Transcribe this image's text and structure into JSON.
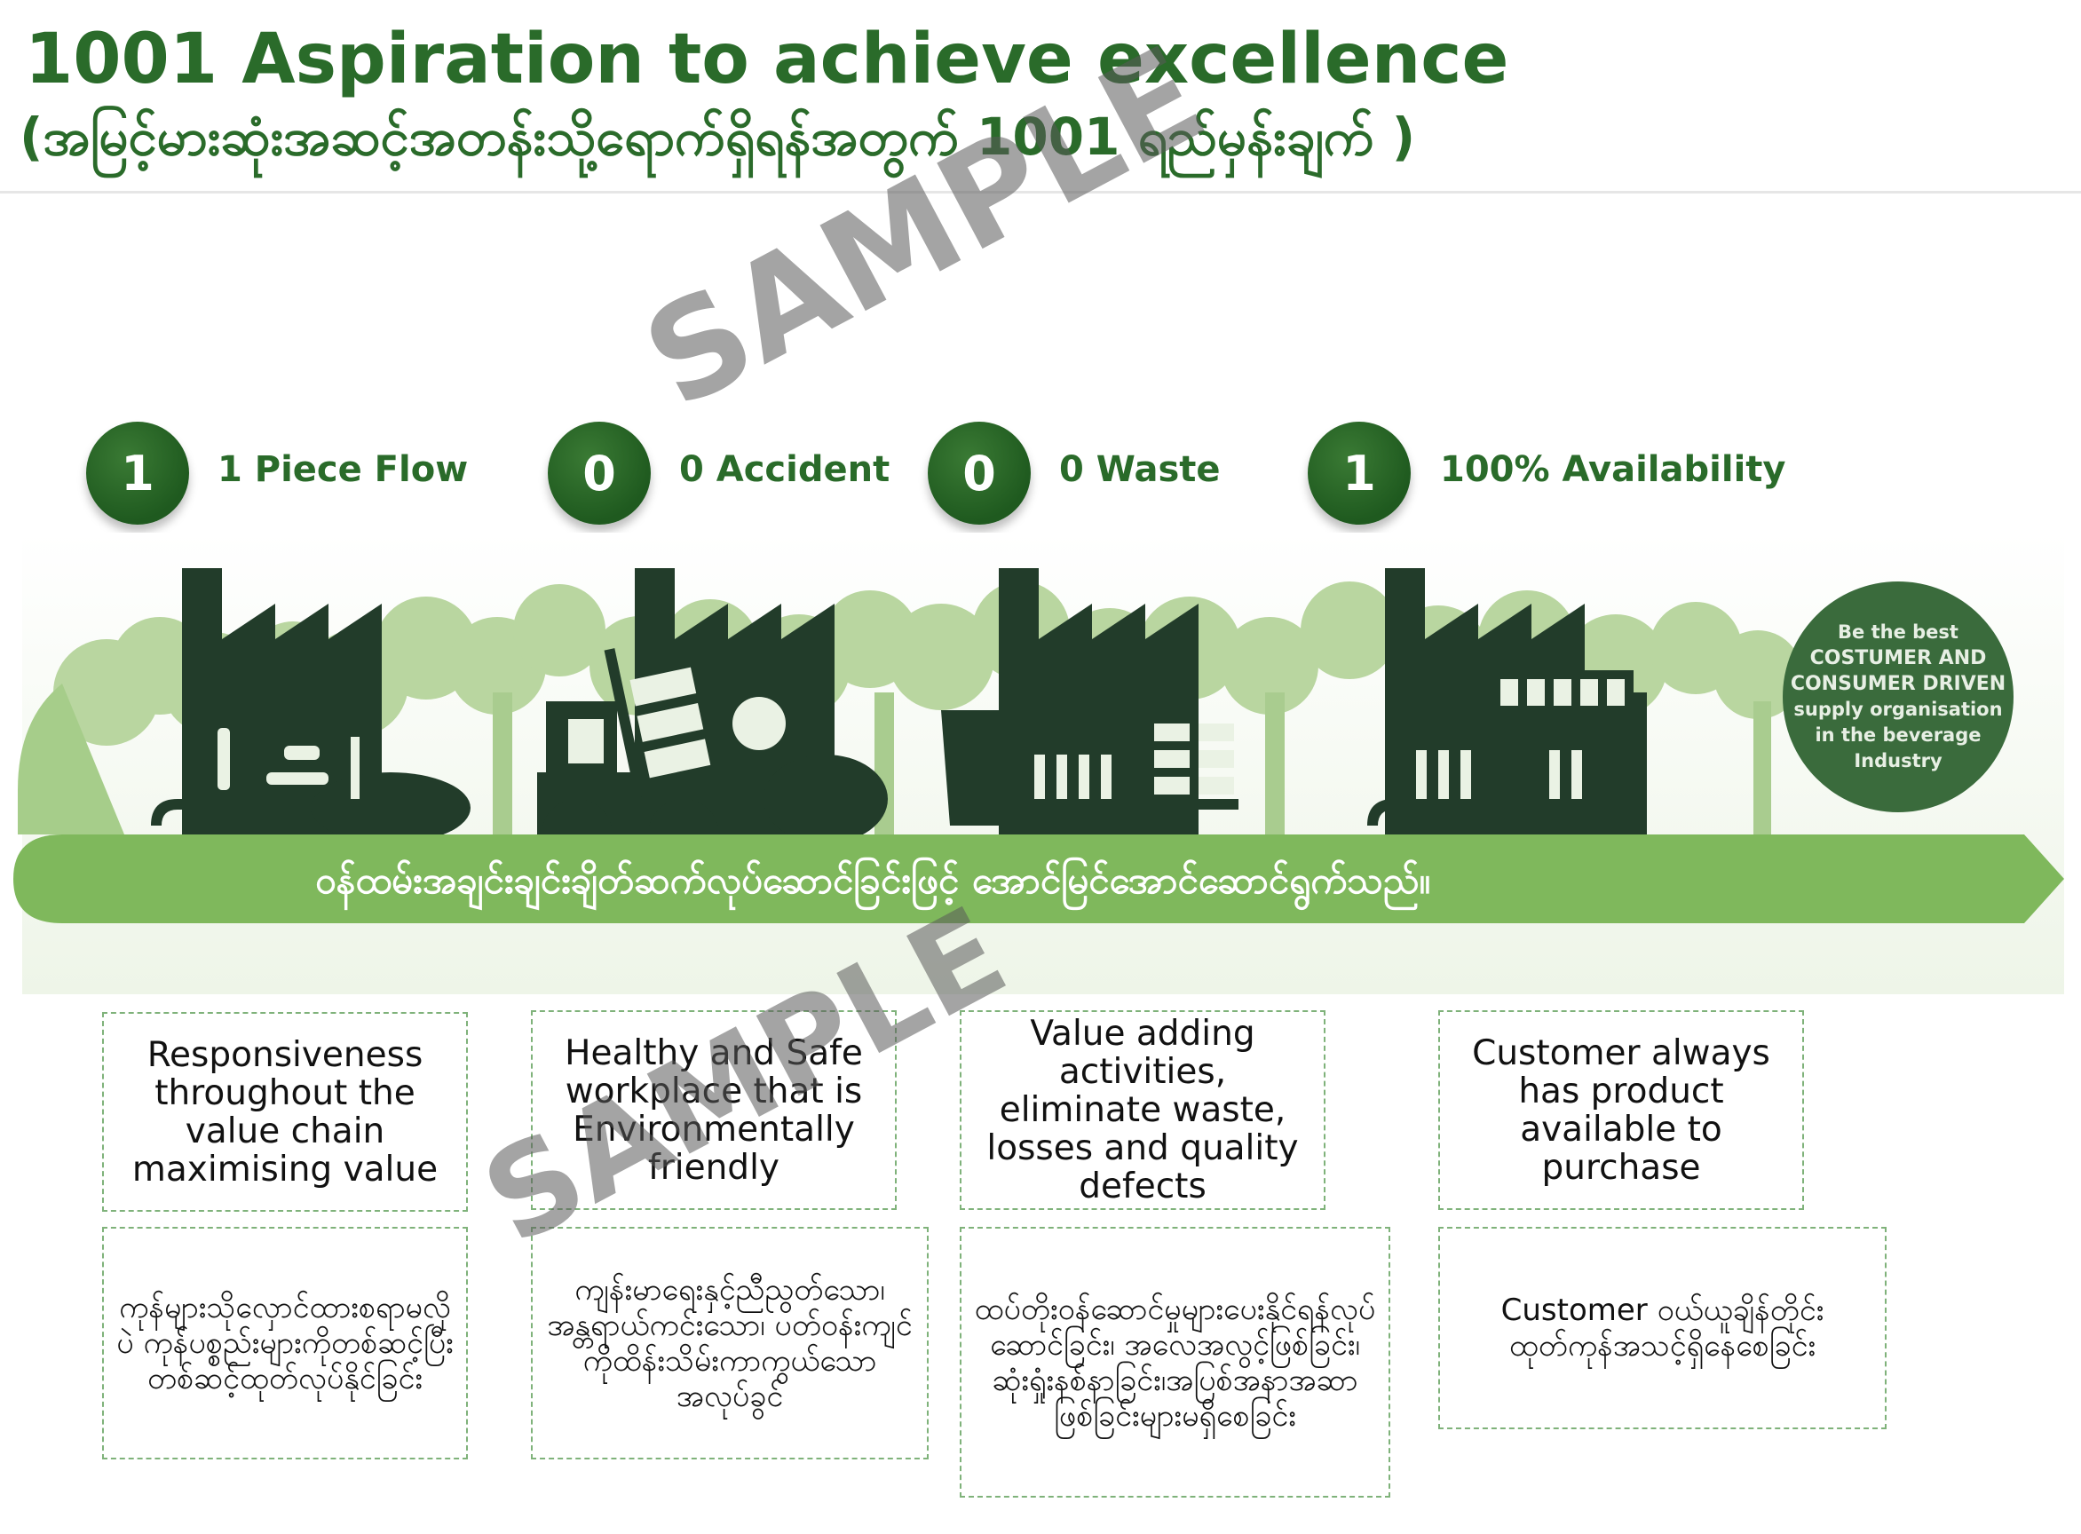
{
  "header": {
    "title": "1001 Aspiration to achieve excellence",
    "subtitle": "(အမြင့်မားဆုံးအဆင့်အတန်းသို့ရောက်ရှိရန်အတွက် 1001 ရည်မှန်းချက် )"
  },
  "steps": [
    {
      "number": "1",
      "label": "1 Piece Flow"
    },
    {
      "number": "0",
      "label": "0 Accident"
    },
    {
      "number": "0",
      "label": "0 Waste"
    },
    {
      "number": "1",
      "label": "100% Availability"
    }
  ],
  "banner": {
    "text": "ဝန်ထမ်းအချင်းချင်းချိတ်ဆက်လုပ်ဆောင်ခြင်းဖြင့် အောင်မြင်အောင်ဆောင်ရွက်သည်။"
  },
  "badge": {
    "line1": "Be the best",
    "line2": "COSTUMER AND",
    "line3": "CONSUMER DRIVEN",
    "line4": "supply organisation",
    "line5": "in the beverage",
    "line6": "Industry"
  },
  "boxes_en": [
    "Responsiveness throughout the value chain maximising value",
    "Healthy and Safe workplace that is Environmentally friendly",
    "Value adding activities, eliminate waste, losses and quality defects",
    "Customer always has product available to purchase"
  ],
  "boxes_my": [
    "ကုန်များသိုလှောင်ထားစရာမလိုပဲ ကုန်ပစ္စည်းများကိုတစ်ဆင့်ပြီးတစ်ဆင့်ထုတ်လုပ်နိုင်ခြင်း",
    "ကျန်းမာရေးနှင့်ညီညွတ်သော၊အန္တရာယ်ကင်းသော၊ ပတ်ဝန်းကျင်ကိုထိန်းသိမ်းကာကွယ်သောအလုပ်ခွင်",
    "ထပ်တိုးဝန်ဆောင်မှုများပေးနိုင်ရန်လုပ်ဆောင်ခြင်း၊ အလေအလွင့်ဖြစ်ခြင်း၊ဆုံးရှုံးနစ်နာခြင်း၊အပြစ်အနာအဆာဖြစ်ခြင်းများမရှိစေခြင်း",
    "Customer ဝယ်ယူချိန်တိုင်း ထုတ်ကုန်အသင့်ရှိနေစေခြင်း"
  ],
  "watermark": "SAMPLE",
  "colors": {
    "dark_green": "#2a6b2a",
    "factory": "#223c2a",
    "tree": "#b6d39a",
    "banner": "#7fb85c"
  }
}
